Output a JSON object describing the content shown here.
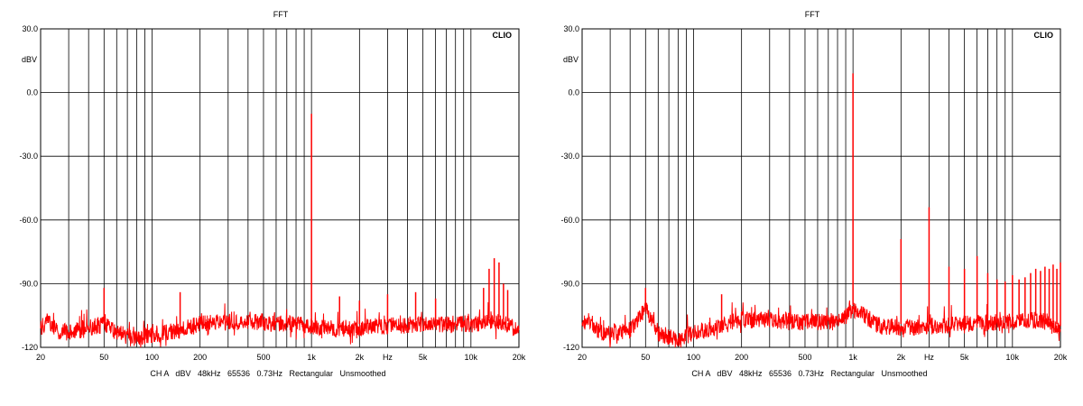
{
  "colors": {
    "trace": "#ff0000",
    "grid": "#000000",
    "background": "#ffffff",
    "text": "#000000"
  },
  "chart_data": [
    {
      "type": "line",
      "title": "FFT",
      "brand": "CLIO",
      "ylabel": "dBV",
      "footer": "CH A   dBV   48kHz   65536   0.73Hz   Rectangular   Unsmoothed",
      "xscale": "log",
      "xlim": [
        20,
        20000
      ],
      "ylim": [
        -120,
        30
      ],
      "yticks": [
        30,
        0,
        -30,
        -60,
        -90,
        -120
      ],
      "ytick_labels": [
        "30.0",
        "0.0",
        "-30.0",
        "-60.0",
        "-90.0",
        "-120"
      ],
      "xticks": [
        20,
        50,
        100,
        200,
        500,
        1000,
        2000,
        3000,
        5000,
        10000,
        20000
      ],
      "xtick_labels": [
        "20",
        "50",
        "100",
        "200",
        "500",
        "1k",
        "2k",
        "Hz",
        "5k",
        "10k",
        "20k"
      ],
      "grid": true,
      "noise_floor": [
        [
          20,
          -111
        ],
        [
          22,
          -107
        ],
        [
          25,
          -112
        ],
        [
          30,
          -113
        ],
        [
          40,
          -111
        ],
        [
          50,
          -109
        ],
        [
          60,
          -113
        ],
        [
          80,
          -116
        ],
        [
          100,
          -114
        ],
        [
          150,
          -112
        ],
        [
          200,
          -109
        ],
        [
          300,
          -108
        ],
        [
          500,
          -108
        ],
        [
          800,
          -109
        ],
        [
          1000,
          -110
        ],
        [
          1500,
          -111
        ],
        [
          2000,
          -111
        ],
        [
          3000,
          -110
        ],
        [
          5000,
          -109
        ],
        [
          10000,
          -109
        ],
        [
          15000,
          -108
        ],
        [
          20000,
          -112
        ]
      ],
      "peaks": [
        [
          50,
          -92
        ],
        [
          150,
          -94
        ],
        [
          1000,
          -10
        ],
        [
          1500,
          -96
        ],
        [
          2000,
          -98
        ],
        [
          3000,
          -95
        ],
        [
          4500,
          -94
        ],
        [
          6000,
          -97
        ],
        [
          12000,
          -92
        ],
        [
          13000,
          -83
        ],
        [
          14000,
          -78
        ],
        [
          15000,
          -80
        ],
        [
          16000,
          -90
        ],
        [
          17000,
          -93
        ]
      ]
    },
    {
      "type": "line",
      "title": "FFT",
      "brand": "CLIO",
      "ylabel": "dBV",
      "footer": "CH A   dBV   48kHz   65536   0.73Hz   Rectangular   Unsmoothed",
      "xscale": "log",
      "xlim": [
        20,
        20000
      ],
      "ylim": [
        -120,
        30
      ],
      "yticks": [
        30,
        0,
        -30,
        -60,
        -90,
        -120
      ],
      "ytick_labels": [
        "30.0",
        "0.0",
        "-30.0",
        "-60.0",
        "-90.0",
        "-120"
      ],
      "xticks": [
        20,
        50,
        100,
        200,
        500,
        1000,
        2000,
        3000,
        5000,
        10000,
        20000
      ],
      "xtick_labels": [
        "20",
        "50",
        "100",
        "200",
        "500",
        "1k",
        "2k",
        "Hz",
        "5k",
        "10k",
        "20k"
      ],
      "grid": true,
      "noise_floor": [
        [
          20,
          -110
        ],
        [
          22,
          -107
        ],
        [
          25,
          -112
        ],
        [
          30,
          -114
        ],
        [
          40,
          -112
        ],
        [
          50,
          -102
        ],
        [
          60,
          -113
        ],
        [
          80,
          -117
        ],
        [
          100,
          -113
        ],
        [
          150,
          -110
        ],
        [
          200,
          -107
        ],
        [
          300,
          -107
        ],
        [
          500,
          -108
        ],
        [
          800,
          -108
        ],
        [
          1000,
          -102
        ],
        [
          1500,
          -110
        ],
        [
          2000,
          -111
        ],
        [
          3000,
          -110
        ],
        [
          5000,
          -109
        ],
        [
          10000,
          -108
        ],
        [
          15000,
          -107
        ],
        [
          20000,
          -112
        ]
      ],
      "peaks": [
        [
          50,
          -92
        ],
        [
          150,
          -95
        ],
        [
          1000,
          9
        ],
        [
          2000,
          -69
        ],
        [
          3000,
          -54
        ],
        [
          4000,
          -82
        ],
        [
          5000,
          -83
        ],
        [
          6000,
          -77
        ],
        [
          7000,
          -85
        ],
        [
          8000,
          -88
        ],
        [
          9000,
          -89
        ],
        [
          10000,
          -86
        ],
        [
          11000,
          -88
        ],
        [
          12000,
          -87
        ],
        [
          13000,
          -85
        ],
        [
          14000,
          -83
        ],
        [
          15000,
          -84
        ],
        [
          16000,
          -82
        ],
        [
          17000,
          -83
        ],
        [
          18000,
          -81
        ],
        [
          19000,
          -83
        ],
        [
          20000,
          -80
        ]
      ]
    }
  ]
}
